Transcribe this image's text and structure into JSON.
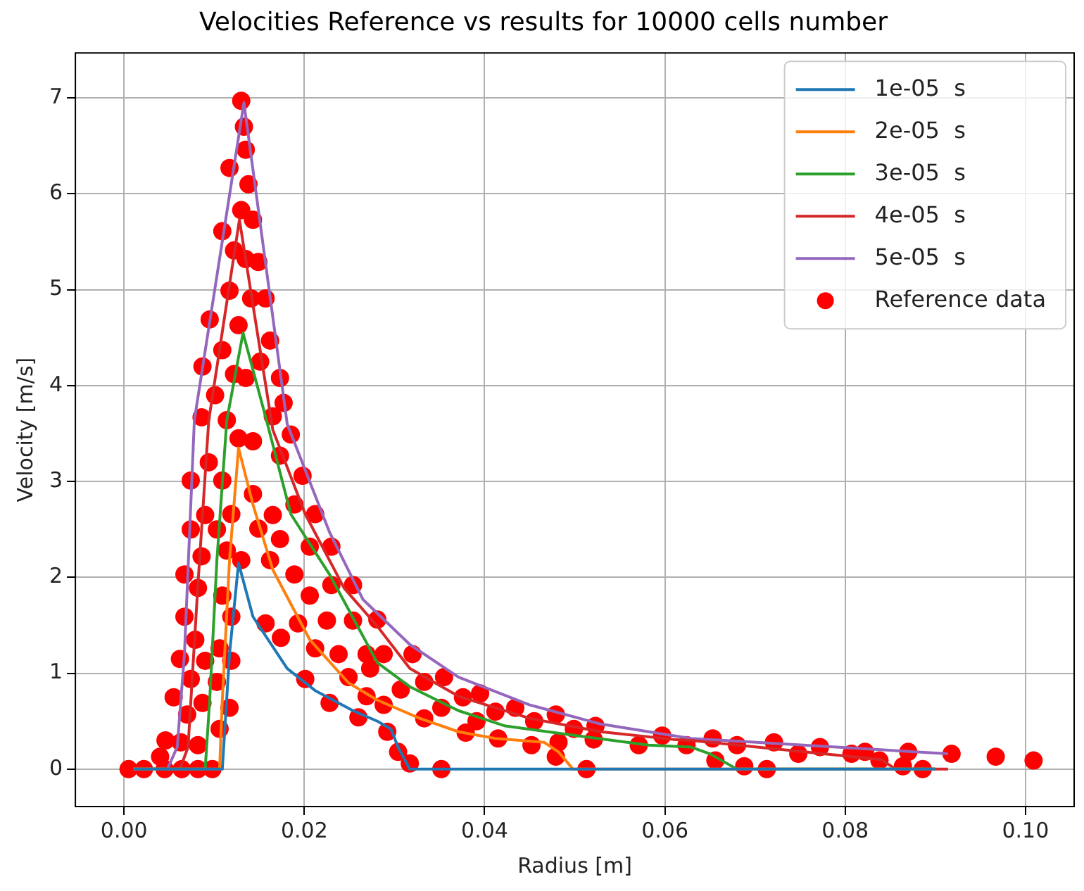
{
  "chart_data": {
    "type": "line",
    "title": "Velocities Reference vs results for 10000 cells number",
    "xlabel": "Radius [m]",
    "ylabel": "Velocity [m/s]",
    "xlim": [
      -0.0054,
      0.1054
    ],
    "xticks": [
      {
        "value": 0,
        "label": "0.00"
      },
      {
        "value": 0.02,
        "label": "0.02"
      },
      {
        "value": 0.04,
        "label": "0.04"
      },
      {
        "value": 0.06,
        "label": "0.06"
      },
      {
        "value": 0.08,
        "label": "0.08"
      },
      {
        "value": 0.1,
        "label": "0.10"
      }
    ],
    "ylim": [
      -0.39,
      7.47
    ],
    "yticks": [
      0,
      1,
      2,
      3,
      4,
      5,
      6,
      7
    ],
    "grid": true,
    "legend": "top right",
    "series": [
      {
        "name": "1e-05  s",
        "color": "#1f77b4",
        "x": [
          0.001,
          0.0109,
          0.0117,
          0.0127,
          0.0143,
          0.0181,
          0.0212,
          0.0254,
          0.0281,
          0.0296,
          0.0304,
          0.0317,
          0.09
        ],
        "values": [
          0,
          0,
          1.2,
          2.15,
          1.59,
          1.05,
          0.82,
          0.61,
          0.5,
          0.42,
          0.23,
          0,
          0
        ]
      },
      {
        "name": "2e-05  s",
        "color": "#ff7f0e",
        "x": [
          0.001,
          0.0106,
          0.0109,
          0.0117,
          0.0127,
          0.0143,
          0.0165,
          0.0206,
          0.0249,
          0.0281,
          0.0328,
          0.0371,
          0.0412,
          0.0466,
          0.0482,
          0.0498,
          0.09
        ],
        "values": [
          0,
          0,
          0.72,
          2.18,
          3.35,
          2.76,
          2.08,
          1.35,
          0.9,
          0.72,
          0.53,
          0.39,
          0.32,
          0.28,
          0.18,
          0,
          0
        ]
      },
      {
        "name": "3e-05  s",
        "color": "#2ca02c",
        "x": [
          0.001,
          0.009,
          0.0095,
          0.0103,
          0.0114,
          0.0132,
          0.0158,
          0.0185,
          0.0228,
          0.0281,
          0.0317,
          0.0371,
          0.0423,
          0.0502,
          0.0582,
          0.0629,
          0.065,
          0.068,
          0.09
        ],
        "values": [
          0,
          0,
          0.72,
          2.18,
          3.64,
          4.55,
          3.64,
          2.66,
          2.03,
          1.11,
          0.86,
          0.61,
          0.45,
          0.35,
          0.25,
          0.23,
          0.16,
          0,
          0
        ]
      },
      {
        "name": "4e-05  s",
        "color": "#d62728",
        "x": [
          0.001,
          0.0062,
          0.0071,
          0.0082,
          0.0094,
          0.0128,
          0.0165,
          0.0201,
          0.0244,
          0.0281,
          0.0317,
          0.0371,
          0.045,
          0.0529,
          0.0609,
          0.0629,
          0.084,
          0.0856,
          0.0914
        ],
        "values": [
          0,
          0,
          0.23,
          1.93,
          3.64,
          5.73,
          3.54,
          2.66,
          1.89,
          1.49,
          1.05,
          0.76,
          0.53,
          0.39,
          0.31,
          0.3,
          0.1,
          0,
          0
        ]
      },
      {
        "name": "5e-05  s",
        "color": "#9467bd",
        "x": [
          0.001,
          0.0048,
          0.0059,
          0.0067,
          0.0078,
          0.0133,
          0.0181,
          0.0228,
          0.0265,
          0.0317,
          0.0371,
          0.045,
          0.0529,
          0.0609,
          0.0629,
          0.0914
        ],
        "values": [
          0,
          0,
          0.23,
          1.2,
          3.64,
          6.95,
          3.6,
          2.47,
          1.77,
          1.3,
          0.96,
          0.67,
          0.47,
          0.35,
          0.32,
          0.16
        ]
      },
      {
        "name": "Reference data",
        "type": "scatter",
        "marker": "circle",
        "color": "#ff0000",
        "x": [
          0.013,
          0.0133,
          0.0135,
          0.0117,
          0.0138,
          0.013,
          0.0143,
          0.0109,
          0.0122,
          0.0135,
          0.0149,
          0.0117,
          0.0141,
          0.0157,
          0.0095,
          0.0127,
          0.0162,
          0.0109,
          0.0151,
          0.0087,
          0.0122,
          0.0135,
          0.0173,
          0.0101,
          0.0177,
          0.0086,
          0.0114,
          0.0165,
          0.0185,
          0.0127,
          0.0143,
          0.0173,
          0.0094,
          0.0074,
          0.0109,
          0.0198,
          0.0143,
          0.0189,
          0.009,
          0.0119,
          0.0165,
          0.0212,
          0.0074,
          0.0103,
          0.0149,
          0.0173,
          0.0206,
          0.023,
          0.0114,
          0.0086,
          0.013,
          0.0162,
          0.0067,
          0.0189,
          0.0082,
          0.0109,
          0.023,
          0.0254,
          0.0206,
          0.0067,
          0.0119,
          0.0157,
          0.0193,
          0.0225,
          0.0254,
          0.0079,
          0.0106,
          0.0174,
          0.0062,
          0.009,
          0.0119,
          0.0212,
          0.0238,
          0.0269,
          0.0074,
          0.0103,
          0.0201,
          0.0249,
          0.0055,
          0.0087,
          0.0117,
          0.0228,
          0.0269,
          0.007,
          0.0106,
          0.026,
          0.0046,
          0.0063,
          0.0082,
          0.004,
          0.0005,
          0.0022,
          0.0045,
          0.0064,
          0.0082,
          0.0098,
          0.0281,
          0.0288,
          0.032,
          0.0273,
          0.0333,
          0.0355,
          0.0307,
          0.0376,
          0.0395,
          0.0352,
          0.0288,
          0.0412,
          0.0434,
          0.0333,
          0.0391,
          0.0455,
          0.0479,
          0.0292,
          0.0379,
          0.0415,
          0.0452,
          0.0499,
          0.0523,
          0.0521,
          0.0571,
          0.0597,
          0.0482,
          0.0304,
          0.0317,
          0.0352,
          0.0479,
          0.0513,
          0.0624,
          0.0653,
          0.0656,
          0.068,
          0.0688,
          0.0713,
          0.0721,
          0.0748,
          0.0772,
          0.0807,
          0.0822,
          0.0838,
          0.0864,
          0.087,
          0.0886,
          0.0918,
          0.0967,
          0.1009
        ],
        "values": [
          6.97,
          6.7,
          6.46,
          6.27,
          6.1,
          5.83,
          5.73,
          5.61,
          5.41,
          5.32,
          5.29,
          4.99,
          4.91,
          4.91,
          4.69,
          4.63,
          4.47,
          4.37,
          4.25,
          4.2,
          4.12,
          4.08,
          4.08,
          3.9,
          3.82,
          3.67,
          3.64,
          3.68,
          3.49,
          3.45,
          3.42,
          3.27,
          3.2,
          3.01,
          3.01,
          3.06,
          2.87,
          2.76,
          2.65,
          2.66,
          2.65,
          2.66,
          2.5,
          2.5,
          2.51,
          2.4,
          2.32,
          2.32,
          2.28,
          2.22,
          2.18,
          2.18,
          2.03,
          2.03,
          1.89,
          1.81,
          1.92,
          1.92,
          1.81,
          1.59,
          1.59,
          1.52,
          1.52,
          1.55,
          1.55,
          1.35,
          1.26,
          1.37,
          1.15,
          1.13,
          1.13,
          1.26,
          1.2,
          1.2,
          0.94,
          0.91,
          0.94,
          0.96,
          0.75,
          0.69,
          0.64,
          0.69,
          0.76,
          0.57,
          0.42,
          0.54,
          0.3,
          0.28,
          0.25,
          0.13,
          0,
          0,
          0,
          0,
          0,
          0,
          1.56,
          1.2,
          1.2,
          1.05,
          0.91,
          0.96,
          0.83,
          0.75,
          0.79,
          0.64,
          0.67,
          0.6,
          0.64,
          0.53,
          0.5,
          0.5,
          0.57,
          0.39,
          0.38,
          0.32,
          0.25,
          0.42,
          0.45,
          0.31,
          0.25,
          0.35,
          0.28,
          0.18,
          0.06,
          0,
          0.13,
          0,
          0.25,
          0.32,
          0.09,
          0.25,
          0.03,
          0,
          0.28,
          0.16,
          0.23,
          0.16,
          0.18,
          0.09,
          0.03,
          0.18,
          0,
          0.16,
          0.13,
          0.09
        ]
      }
    ]
  }
}
